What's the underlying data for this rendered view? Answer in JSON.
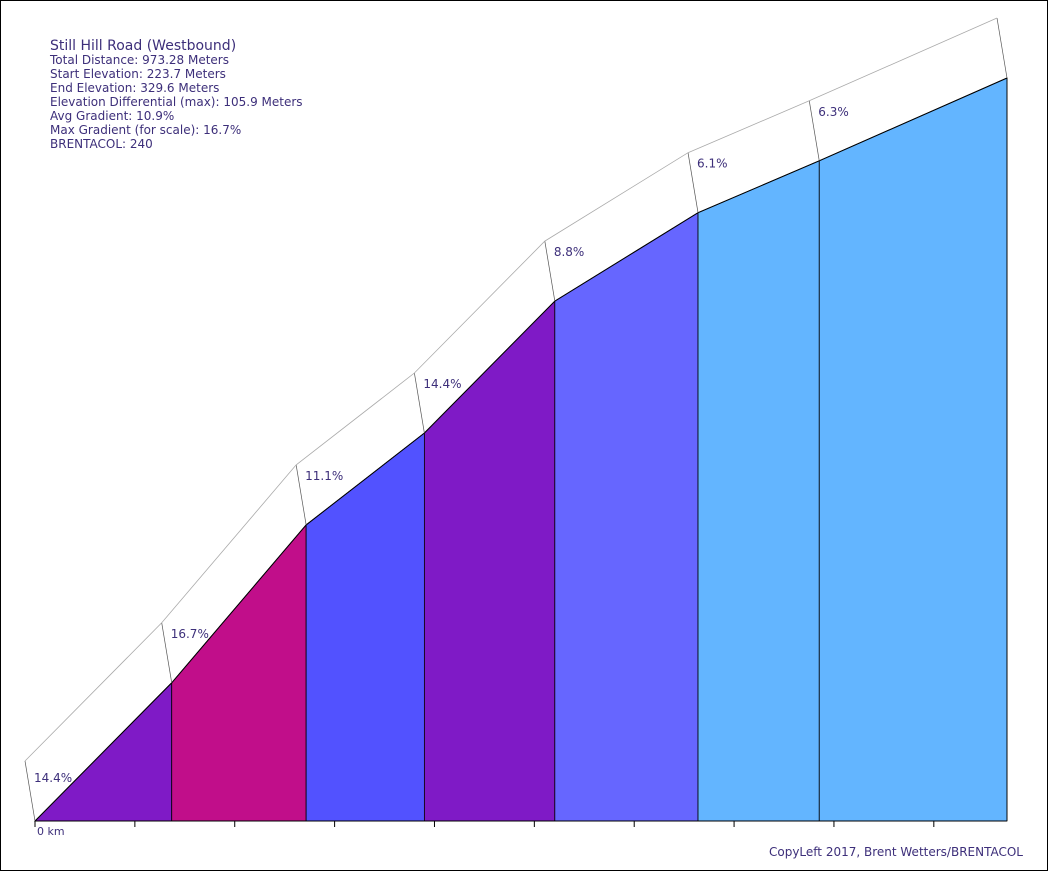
{
  "info": {
    "title": "Still Hill Road (Westbound)",
    "stats": [
      "Total Distance: 973.28 Meters",
      "Start Elevation: 223.7 Meters",
      "End Elevation: 329.6 Meters",
      "Elevation Differential (max): 105.9 Meters",
      "Avg Gradient: 10.9%",
      "Max Gradient (for scale): 16.7%",
      "BRENTACOL: 240"
    ]
  },
  "copyright": "CopyLeft 2017, Brent Wetters/BRENTACOL",
  "chart_data": {
    "type": "area",
    "x_unit": "Meters",
    "x_axis_first_label": "0 km",
    "xlim": [
      0,
      973.28
    ],
    "ylim_elevation": [
      223.7,
      329.6
    ],
    "segments": [
      {
        "start_m": 0,
        "end_m": 136.9,
        "start_elev": 223.7,
        "end_elev": 243.4,
        "gradient": "14.4%",
        "color": "#7f1ac6"
      },
      {
        "start_m": 136.9,
        "end_m": 271.5,
        "start_elev": 243.4,
        "end_elev": 265.9,
        "gradient": "16.7%",
        "color": "#c10e8a"
      },
      {
        "start_m": 271.5,
        "end_m": 389.9,
        "start_elev": 265.9,
        "end_elev": 279.0,
        "gradient": "11.1%",
        "color": "#5252ff"
      },
      {
        "start_m": 389.9,
        "end_m": 520.5,
        "start_elev": 279.0,
        "end_elev": 297.8,
        "gradient": "14.4%",
        "color": "#7f1ac6"
      },
      {
        "start_m": 520.5,
        "end_m": 663.9,
        "start_elev": 297.8,
        "end_elev": 310.4,
        "gradient": "8.8%",
        "color": "#6666ff"
      },
      {
        "start_m": 663.9,
        "end_m": 785.3,
        "start_elev": 310.4,
        "end_elev": 317.8,
        "gradient": "6.1%",
        "color": "#63b5ff"
      },
      {
        "start_m": 785.3,
        "end_m": 973.28,
        "start_elev": 317.8,
        "end_elev": 329.6,
        "gradient": "6.3%",
        "color": "#63b5ff"
      }
    ],
    "x_ticks_m": [
      0,
      100,
      200,
      300,
      400,
      500,
      600,
      700,
      800,
      900
    ]
  }
}
